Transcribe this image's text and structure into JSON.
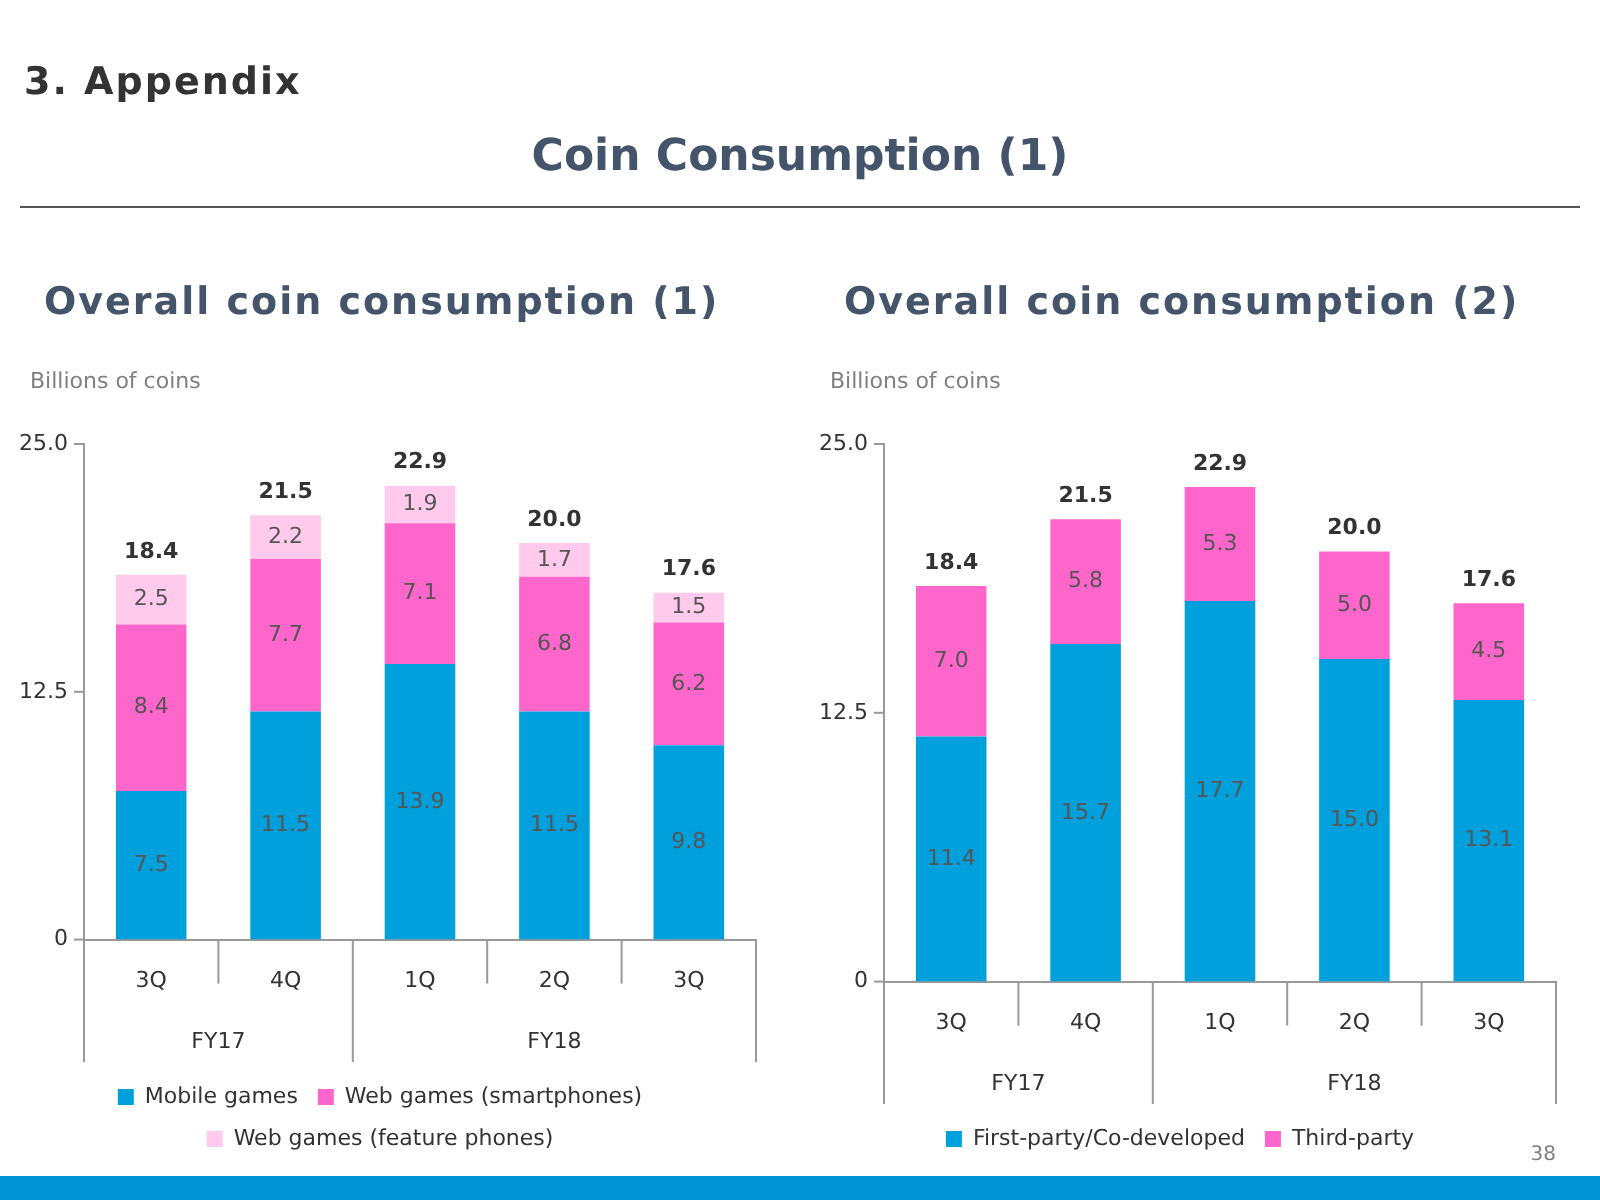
{
  "chart_data": [
    {
      "type": "other",
      "title": "Coin Consumption (1)",
      "annotations": [
        "3. Appendix",
        "38"
      ]
    },
    {
      "type": "bar",
      "title": "Overall coin consumption (1)",
      "ylabel": "Billions of coins",
      "categories": [
        "3Q",
        "4Q",
        "1Q",
        "2Q",
        "3Q"
      ],
      "stacked": true,
      "ylim": [
        0,
        25
      ],
      "yticks": [
        {
          "value": 0,
          "label": "0"
        },
        {
          "value": 12.5,
          "label": "12.5"
        },
        {
          "value": 25,
          "label": "25.0"
        }
      ],
      "grid": false,
      "legend": "bottom",
      "annotations": [
        "FY17",
        "FY18"
      ],
      "totals": [
        "18.4",
        "21.5",
        "22.9",
        "20.0",
        "17.6"
      ],
      "series": [
        {
          "name": "Mobile games",
          "color": "#00a0dc",
          "values": [
            7.5,
            11.5,
            13.9,
            11.5,
            9.8
          ],
          "value_labels": [
            "7.5",
            "11.5",
            "13.9",
            "11.5",
            "9.8"
          ]
        },
        {
          "name": "Web games (smartphones)",
          "color": "#ff66cc",
          "values": [
            8.4,
            7.7,
            7.1,
            6.8,
            6.2
          ],
          "value_labels": [
            "8.4",
            "7.7",
            "7.1",
            "6.8",
            "6.2"
          ]
        },
        {
          "name": "Web games (feature phones)",
          "color": "#ffcaeb",
          "values": [
            2.5,
            2.2,
            1.9,
            1.7,
            1.5
          ],
          "value_labels": [
            "2.5",
            "2.2",
            "1.9",
            "1.7",
            "1.5"
          ]
        }
      ]
    },
    {
      "type": "bar",
      "title": "Overall coin consumption (2)",
      "ylabel": "Billions of coins",
      "categories": [
        "3Q",
        "4Q",
        "1Q",
        "2Q",
        "3Q"
      ],
      "stacked": true,
      "ylim": [
        0,
        25
      ],
      "yticks": [
        {
          "value": 0,
          "label": "0"
        },
        {
          "value": 12.5,
          "label": "12.5"
        },
        {
          "value": 25,
          "label": "25.0"
        }
      ],
      "grid": false,
      "legend": "bottom",
      "annotations": [
        "FY17",
        "FY18"
      ],
      "totals": [
        "18.4",
        "21.5",
        "22.9",
        "20.0",
        "17.6"
      ],
      "series": [
        {
          "name": "First-party/Co-developed",
          "color": "#00a0dc",
          "values": [
            11.4,
            15.7,
            17.7,
            15.0,
            13.1
          ],
          "value_labels": [
            "11.4",
            "15.7",
            "17.7",
            "15.0",
            "13.1"
          ]
        },
        {
          "name": "Third-party",
          "color": "#ff66cc",
          "values": [
            7.0,
            5.8,
            5.3,
            5.0,
            4.5
          ],
          "value_labels": [
            "7.0",
            "5.8",
            "5.3",
            "5.0",
            "4.5"
          ]
        }
      ]
    }
  ]
}
